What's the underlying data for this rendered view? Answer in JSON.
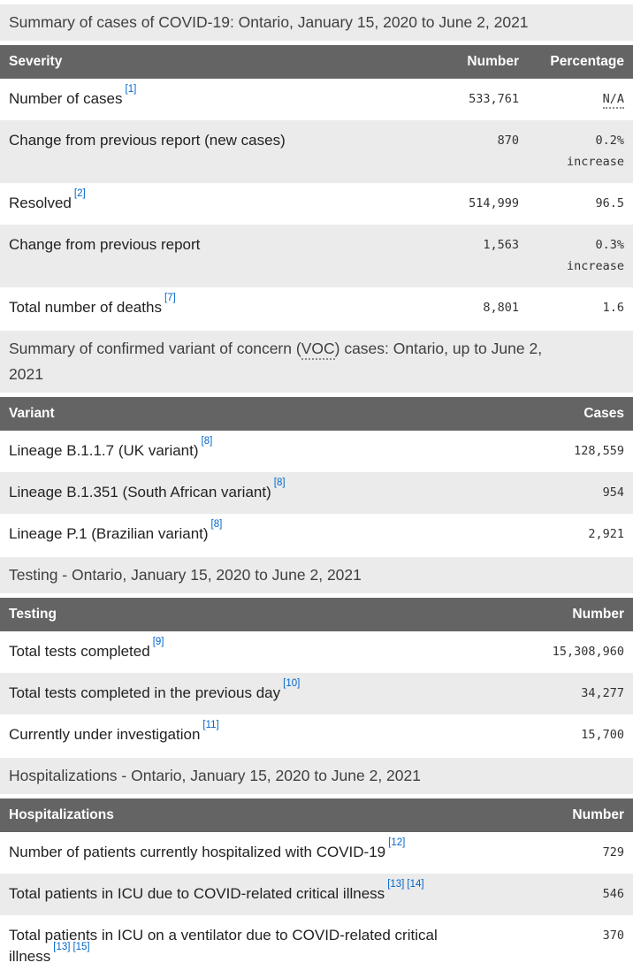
{
  "palette": {
    "header_bg": "#646464",
    "header_text": "#ffffff",
    "band_bg": "#ebebeb",
    "link_blue": "#0066cc",
    "label_text": "#222222",
    "number_text": "#333333"
  },
  "severity_table": {
    "caption": "Summary of cases of COVID-19: Ontario, January 15, 2020 to June 2, 2021",
    "headers": {
      "col1": "Severity",
      "col2": "Number",
      "col3": "Percentage"
    },
    "rows": [
      {
        "label": "Number of cases",
        "ref1": "[1]",
        "number": "533,761",
        "pct": "N/A",
        "pct2": ""
      },
      {
        "label": "Change from previous report (new cases)",
        "number": "870",
        "pct": "0.2%",
        "pct2": "increase"
      },
      {
        "label": "Resolved",
        "ref1": "[2]",
        "number": "514,999",
        "pct": "96.5",
        "pct2": ""
      },
      {
        "label": "Change from previous report",
        "number": "1,563",
        "pct": "0.3%",
        "pct2": "increase"
      },
      {
        "label": "Total number of deaths",
        "ref1": "[7]",
        "number": "8,801",
        "pct": "1.6",
        "pct2": ""
      }
    ]
  },
  "variant_table": {
    "caption_pre": "Summary of confirmed variant of concern (",
    "caption_abbr": "VOC",
    "caption_post": ") cases: Ontario, up to June 2, 2021",
    "headers": {
      "col1": "Variant",
      "col2": "Cases"
    },
    "rows": [
      {
        "label": "Lineage B.1.1.7 (UK variant)",
        "ref1": "[8]",
        "number": "128,559"
      },
      {
        "label": "Lineage B.1.351 (South African variant)",
        "ref1": "[8]",
        "number": "954"
      },
      {
        "label": "Lineage P.1 (Brazilian variant)",
        "ref1": "[8]",
        "number": "2,921"
      }
    ]
  },
  "testing_table": {
    "caption": "Testing - Ontario, January 15, 2020 to June 2, 2021",
    "headers": {
      "col1": "Testing",
      "col2": "Number"
    },
    "rows": [
      {
        "label": "Total tests completed",
        "ref1": "[9]",
        "number": "15,308,960"
      },
      {
        "label": "Total tests completed in the previous day",
        "ref1": "[10]",
        "number": "34,277"
      },
      {
        "label": "Currently under investigation",
        "ref1": "[11]",
        "number": "15,700"
      }
    ]
  },
  "hospitalization_table": {
    "caption": "Hospitalizations - Ontario, January 15, 2020 to June 2, 2021",
    "headers": {
      "col1": "Hospitalizations",
      "col2": "Number"
    },
    "rows": [
      {
        "label": "Number of patients currently hospitalized with COVID-19",
        "ref1": "[12]",
        "number": "729"
      },
      {
        "label": "Total patients in ICU due to COVID-related critical illness",
        "ref1": "[13]",
        "ref2": "[14]",
        "number": "546"
      },
      {
        "label": "Total patients in ICU on a ventilator due to COVID-related critical illness",
        "ref1": "[13]",
        "ref2": "[15]",
        "number": "370"
      }
    ]
  }
}
